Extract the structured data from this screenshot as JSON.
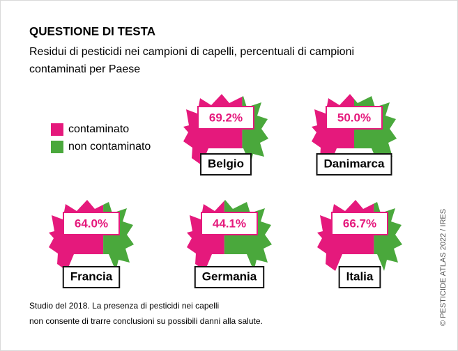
{
  "chart_data": {
    "type": "hair",
    "title": "QUESTIONE DI TESTA",
    "subtitle": [
      "Residui di pesticidi nei campioni di capelli, percentuali di campioni",
      "contaminati per Paese"
    ],
    "categories": [
      "Belgio",
      "Danimarca",
      "Francia",
      "Germania",
      "Italia"
    ],
    "series": [
      {
        "name": "contaminato",
        "color": "#e5197c",
        "values": [
          69.2,
          50.0,
          64.0,
          44.1,
          66.7
        ],
        "value_labels": [
          "69.2%",
          "50.0%",
          "64.0%",
          "44.1%",
          "66.7%"
        ]
      },
      {
        "name": "non contaminato",
        "color": "#4aa83c",
        "values": [
          30.8,
          50.0,
          36.0,
          55.9,
          33.3
        ]
      }
    ],
    "note": [
      "Studio del 2018. La presenza di pesticidi nei capelli",
      "non consente di trarre conclusioni su possibili danni alla salute."
    ],
    "credit": "© PESTICIDE ATLAS 2022 / IRES"
  }
}
